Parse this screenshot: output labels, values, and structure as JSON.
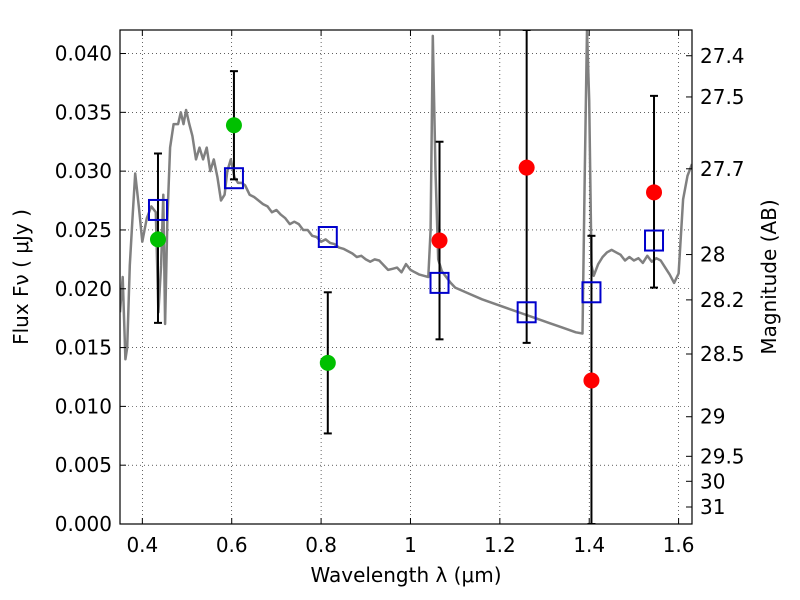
{
  "chart_data": {
    "type": "scatter",
    "xlabel": "Wavelength  λ (μm)",
    "ylabel": "Flux  Fν  ( μJy )",
    "ylabel_right": "Magnitude (AB)",
    "xlim": [
      0.35,
      1.63
    ],
    "ylim": [
      0.0,
      0.042
    ],
    "grid": true,
    "x_ticks": [
      0.4,
      0.6,
      0.8,
      1.0,
      1.2,
      1.4,
      1.6
    ],
    "x_tick_labels": [
      "0.4",
      "0.6",
      "0.8",
      "1",
      "1.2",
      "1.4",
      "1.6"
    ],
    "y_ticks": [
      0.0,
      0.005,
      0.01,
      0.015,
      0.02,
      0.025,
      0.03,
      0.035,
      0.04
    ],
    "y_tick_labels": [
      "0.000",
      "0.005",
      "0.010",
      "0.015",
      "0.020",
      "0.025",
      "0.030",
      "0.035",
      "0.040"
    ],
    "right_ticks": [
      27.4,
      27.5,
      27.7,
      28,
      28.2,
      28.5,
      29,
      29.5,
      30,
      31
    ],
    "right_tick_labels": [
      "27.4",
      "27.5",
      "27.7",
      "28",
      "28.2",
      "28.5",
      "29",
      "29.5",
      "30",
      "31"
    ],
    "series": [
      {
        "style": "line",
        "color": "#808080",
        "x": [
          0.35,
          0.356,
          0.362,
          0.366,
          0.372,
          0.378,
          0.384,
          0.392,
          0.4,
          0.41,
          0.42,
          0.43,
          0.436,
          0.442,
          0.447,
          0.451,
          0.456,
          0.462,
          0.47,
          0.48,
          0.486,
          0.492,
          0.498,
          0.505,
          0.512,
          0.52,
          0.528,
          0.536,
          0.544,
          0.552,
          0.56,
          0.568,
          0.576,
          0.584,
          0.59,
          0.598,
          0.606,
          0.614,
          0.622,
          0.63,
          0.64,
          0.65,
          0.66,
          0.67,
          0.68,
          0.69,
          0.7,
          0.71,
          0.72,
          0.73,
          0.74,
          0.75,
          0.76,
          0.77,
          0.78,
          0.79,
          0.8,
          0.81,
          0.82,
          0.83,
          0.84,
          0.85,
          0.86,
          0.87,
          0.88,
          0.89,
          0.9,
          0.91,
          0.92,
          0.93,
          0.94,
          0.95,
          0.96,
          0.97,
          0.98,
          0.99,
          1.0,
          1.01,
          1.02,
          1.03,
          1.04,
          1.045,
          1.05,
          1.056,
          1.062,
          1.07,
          1.08,
          1.09,
          1.1,
          1.13,
          1.16,
          1.19,
          1.22,
          1.25,
          1.28,
          1.31,
          1.34,
          1.37,
          1.385,
          1.39,
          1.395,
          1.4,
          1.405,
          1.41,
          1.42,
          1.43,
          1.44,
          1.45,
          1.46,
          1.47,
          1.48,
          1.49,
          1.5,
          1.51,
          1.52,
          1.53,
          1.54,
          1.55,
          1.56,
          1.57,
          1.58,
          1.59,
          1.6,
          1.61,
          1.62,
          1.63
        ],
        "y": [
          0.018,
          0.021,
          0.014,
          0.015,
          0.022,
          0.026,
          0.0298,
          0.027,
          0.024,
          0.026,
          0.027,
          0.0265,
          0.018,
          0.022,
          0.028,
          0.017,
          0.026,
          0.032,
          0.034,
          0.034,
          0.035,
          0.034,
          0.0352,
          0.034,
          0.033,
          0.031,
          0.032,
          0.031,
          0.032,
          0.03,
          0.031,
          0.0295,
          0.0275,
          0.028,
          0.03,
          0.031,
          0.0295,
          0.029,
          0.029,
          0.0288,
          0.028,
          0.0278,
          0.0275,
          0.0272,
          0.027,
          0.0265,
          0.0267,
          0.0263,
          0.026,
          0.0255,
          0.0257,
          0.0255,
          0.025,
          0.025,
          0.0245,
          0.0244,
          0.024,
          0.0242,
          0.0239,
          0.0238,
          0.0235,
          0.0234,
          0.0232,
          0.023,
          0.0227,
          0.0228,
          0.0225,
          0.0223,
          0.0225,
          0.0224,
          0.022,
          0.0216,
          0.0217,
          0.0218,
          0.0214,
          0.0221,
          0.0216,
          0.0214,
          0.0212,
          0.0211,
          0.021,
          0.025,
          0.0415,
          0.03,
          0.0225,
          0.0215,
          0.021,
          0.0205,
          0.0201,
          0.0196,
          0.0191,
          0.0187,
          0.0183,
          0.0179,
          0.0175,
          0.0171,
          0.0167,
          0.0163,
          0.0162,
          0.03,
          0.042,
          0.036,
          0.022,
          0.0211,
          0.0221,
          0.0227,
          0.0231,
          0.0233,
          0.0231,
          0.0229,
          0.0224,
          0.0227,
          0.0224,
          0.0226,
          0.0222,
          0.0228,
          0.0223,
          0.0226,
          0.0224,
          0.0218,
          0.0212,
          0.0205,
          0.0213,
          0.0276,
          0.0296,
          0.0306
        ]
      },
      {
        "style": "open-square",
        "color": "#0000cc",
        "x": [
          0.435,
          0.605,
          0.815,
          1.065,
          1.26,
          1.405,
          1.545
        ],
        "y": [
          0.0267,
          0.0294,
          0.0244,
          0.0205,
          0.018,
          0.0197,
          0.0241
        ]
      },
      {
        "style": "filled-circle",
        "color": "#00c000",
        "x": [
          0.435,
          0.605,
          0.815
        ],
        "y": [
          0.0242,
          0.0339,
          0.0137
        ],
        "yerr_low": [
          0.0171,
          0.0293,
          0.0077
        ],
        "yerr_high": [
          0.0315,
          0.0385,
          0.0197
        ]
      },
      {
        "style": "filled-circle",
        "color": "#ff0000",
        "x": [
          1.065,
          1.26,
          1.405,
          1.545
        ],
        "y": [
          0.0241,
          0.0303,
          0.0122,
          0.0282
        ],
        "yerr_low": [
          0.0157,
          0.0154,
          0.0,
          0.0201
        ],
        "yerr_high": [
          0.0325,
          0.042,
          0.0245,
          0.0364
        ]
      }
    ]
  }
}
